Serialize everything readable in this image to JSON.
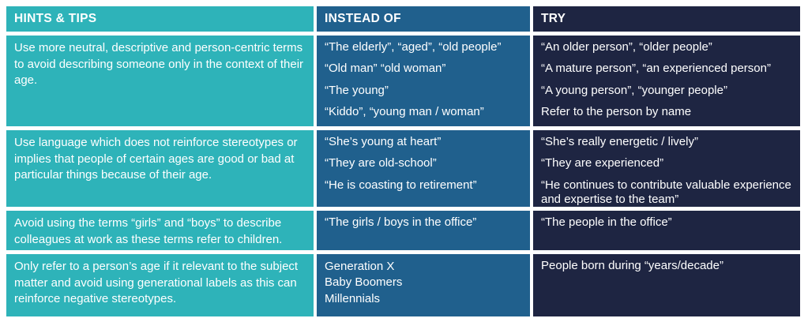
{
  "table": {
    "colors": {
      "hints_column_bg": "#2EB3B9",
      "instead_column_bg": "#20608D",
      "try_column_bg": "#1E2542",
      "text": "#FFFFFF",
      "page_background": "#FFFFFF"
    },
    "headers": [
      {
        "label": "HINTS & TIPS"
      },
      {
        "label": "INSTEAD OF"
      },
      {
        "label": "TRY"
      }
    ],
    "rows": [
      {
        "tip": "Use more neutral, descriptive and person-centric terms to avoid describing someone only in the context of their age.",
        "instead": [
          "“The elderly”, “aged”, “old people”",
          "“Old man” “old woman”",
          "“The young”",
          "“Kiddo”, “young man / woman”"
        ],
        "try": [
          "“An older person”, “older people”",
          "“A mature person”, “an experienced person”",
          "“A young person”, “younger people”",
          "Refer to the person by name"
        ]
      },
      {
        "tip": "Use language which does not reinforce stereotypes or implies that people of certain ages are good or bad at particular things because of their age.",
        "instead": [
          "“She’s young at heart”",
          "“They are old-school”",
          "“He is coasting to retirement”"
        ],
        "try": [
          "“She’s really energetic / lively”",
          "“They are experienced”",
          "“He continues to contribute valuable experience and expertise to the team”"
        ]
      },
      {
        "tip": "Avoid using the terms “girls” and “boys” to describe colleagues at work as these terms refer to children.",
        "instead": [
          "“The girls / boys in the office”"
        ],
        "try": [
          "“The people in the office”"
        ]
      },
      {
        "tip": "Only refer to a person’s age if it relevant to the subject matter and avoid using generational labels as this can reinforce negative stereotypes.",
        "instead": [
          "Generation X",
          "Baby Boomers",
          "Millennials"
        ],
        "try": [
          "People born during “years/decade”"
        ]
      }
    ]
  }
}
